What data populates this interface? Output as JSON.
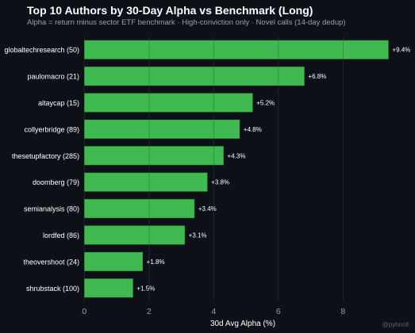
{
  "header": {
    "title": "Top 10 Authors by 30-Day Alpha vs Benchmark (Long)",
    "subtitle": "Alpha = return minus sector ETF benchmark · High-conviction only · Novel calls (14-day dedup)"
  },
  "watermark": "@pyhnoll",
  "colors": {
    "background": "#0d1117",
    "bar": "#3fb950",
    "bar_edge": "#2ea043",
    "grid": "#30363d",
    "text": "#ffffff",
    "muted": "#9aa0a6"
  },
  "chart_data": {
    "type": "bar",
    "orientation": "horizontal",
    "title": "Top 10 Authors by 30-Day Alpha vs Benchmark (Long)",
    "subtitle": "Alpha = return minus sector ETF benchmark · High-conviction only · Novel calls (14-day dedup)",
    "xlabel": "30d Avg Alpha (%)",
    "ylabel": "",
    "xlim": [
      -0.4,
      10.2
    ],
    "xticks": [
      0,
      2,
      4,
      6,
      8
    ],
    "grid": true,
    "categories": [
      "globaltechresearch  (50)",
      "paulomacro  (21)",
      "altaycap  (15)",
      "collyerbridge  (89)",
      "thesetupfactory  (285)",
      "doomberg  (79)",
      "semianalysis  (80)",
      "lordfed  (86)",
      "theovershoot  (24)",
      "shrubstack  (100)"
    ],
    "values": [
      9.4,
      6.8,
      5.2,
      4.8,
      4.3,
      3.8,
      3.4,
      3.1,
      1.8,
      1.5
    ],
    "labels": [
      "+9.4%",
      "+6.8%",
      "+5.2%",
      "+4.8%",
      "+4.3%",
      "+3.8%",
      "+3.4%",
      "+3.1%",
      "+1.8%",
      "+1.5%"
    ]
  }
}
